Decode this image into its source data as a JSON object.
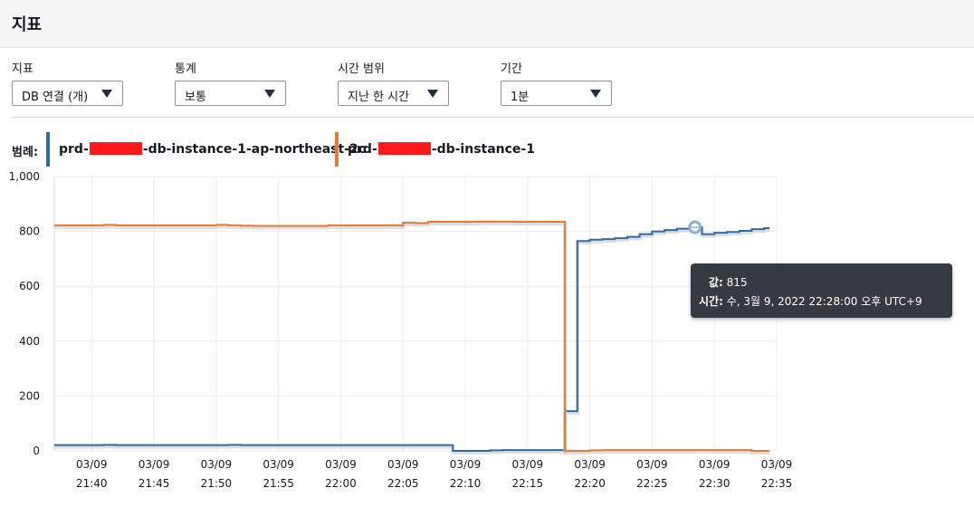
{
  "header": {
    "title": "지표"
  },
  "controls": [
    {
      "label": "지표",
      "value": "DB 연결 (개)"
    },
    {
      "label": "통계",
      "value": "보통"
    },
    {
      "label": "시간 범위",
      "value": "지난 한 시간"
    },
    {
      "label": "기간",
      "value": "1분"
    }
  ],
  "legend": {
    "label": "범례:",
    "items": [
      {
        "prefix": "prd-",
        "suffix": "-db-instance-1-ap-northeast-2c",
        "color": "#2e6aa6"
      },
      {
        "prefix": "prd-",
        "suffix": "-db-instance-1",
        "color": "#e07b39"
      }
    ]
  },
  "tooltip": {
    "value_label": "값:",
    "value": "815",
    "time_label": "시간:",
    "time": "수, 3월 9, 2022 22:28:00 오후 UTC+9"
  },
  "chart_data": {
    "type": "line",
    "x": [
      "21:37",
      "21:38",
      "21:39",
      "21:40",
      "21:41",
      "21:42",
      "21:43",
      "21:44",
      "21:45",
      "21:46",
      "21:47",
      "21:48",
      "21:49",
      "21:50",
      "21:51",
      "21:52",
      "21:53",
      "21:54",
      "21:55",
      "21:56",
      "21:57",
      "21:58",
      "21:59",
      "22:00",
      "22:01",
      "22:02",
      "22:03",
      "22:04",
      "22:05",
      "22:06",
      "22:07",
      "22:08",
      "22:09",
      "22:10",
      "22:11",
      "22:12",
      "22:13",
      "22:14",
      "22:15",
      "22:16",
      "22:17",
      "22:18",
      "22:19",
      "22:20",
      "22:21",
      "22:22",
      "22:23",
      "22:24",
      "22:25",
      "22:26",
      "22:27",
      "22:28",
      "22:29",
      "22:30",
      "22:31",
      "22:32",
      "22:33",
      "22:34"
    ],
    "series": [
      {
        "name": "prd-",
        "color": "#2e6aa6",
        "values": [
          21,
          21,
          21,
          21,
          22,
          21,
          21,
          21,
          21,
          21,
          21,
          21,
          21,
          21,
          22,
          21,
          21,
          21,
          21,
          21,
          21,
          21,
          21,
          21,
          21,
          21,
          21,
          21,
          21,
          21,
          21,
          21,
          0,
          0,
          0,
          2,
          3,
          3,
          3,
          3,
          3,
          145,
          765,
          770,
          772,
          775,
          780,
          790,
          800,
          805,
          810,
          815,
          790,
          795,
          798,
          802,
          808,
          812
        ]
      },
      {
        "name": "prd-",
        "color": "#e07b39",
        "values": [
          822,
          822,
          822,
          822,
          824,
          822,
          822,
          822,
          822,
          822,
          822,
          822,
          822,
          824,
          822,
          821,
          820,
          820,
          820,
          820,
          820,
          820,
          822,
          822,
          822,
          822,
          822,
          822,
          832,
          830,
          835,
          835,
          835,
          835,
          836,
          836,
          836,
          835,
          835,
          835,
          835,
          0,
          0,
          2,
          3,
          3,
          3,
          3,
          3,
          3,
          3,
          3,
          3,
          3,
          3,
          3,
          0,
          0
        ]
      }
    ],
    "x_ticks": [
      "21:40",
      "21:45",
      "21:50",
      "21:55",
      "22:00",
      "22:05",
      "22:10",
      "22:15",
      "22:20",
      "22:25",
      "22:30",
      "22:35"
    ],
    "x_tick_date": "03/09",
    "y_ticks": [
      "0",
      "200",
      "400",
      "600",
      "800",
      "1,000"
    ],
    "ylim": [
      0,
      1000
    ],
    "grid": true,
    "highlight": {
      "x": "22:28",
      "series": 0
    }
  }
}
